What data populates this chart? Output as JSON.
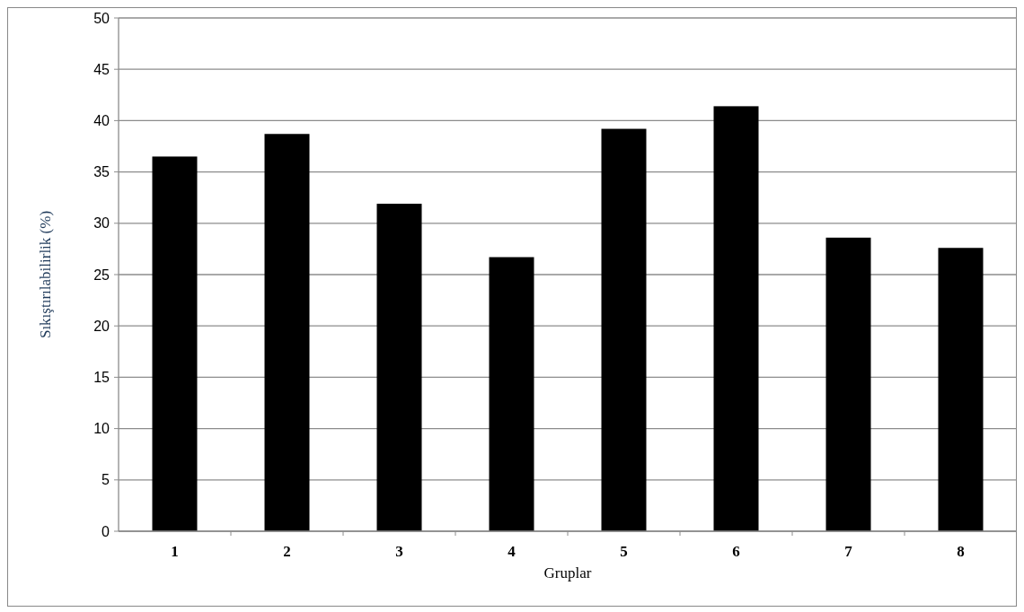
{
  "chart_data": {
    "type": "bar",
    "xlabel": "Gruplar",
    "ylabel": "Sıkıştırılabilirlik (%)",
    "categories": [
      "1",
      "2",
      "3",
      "4",
      "5",
      "6",
      "7",
      "8"
    ],
    "values": [
      36.5,
      38.7,
      31.9,
      26.7,
      39.2,
      41.4,
      28.6,
      27.6
    ],
    "color": "#000000",
    "ylim": [
      0,
      50
    ],
    "yticks": [
      0,
      5,
      10,
      15,
      20,
      25,
      30,
      35,
      40,
      45,
      50
    ],
    "grid": "y"
  }
}
